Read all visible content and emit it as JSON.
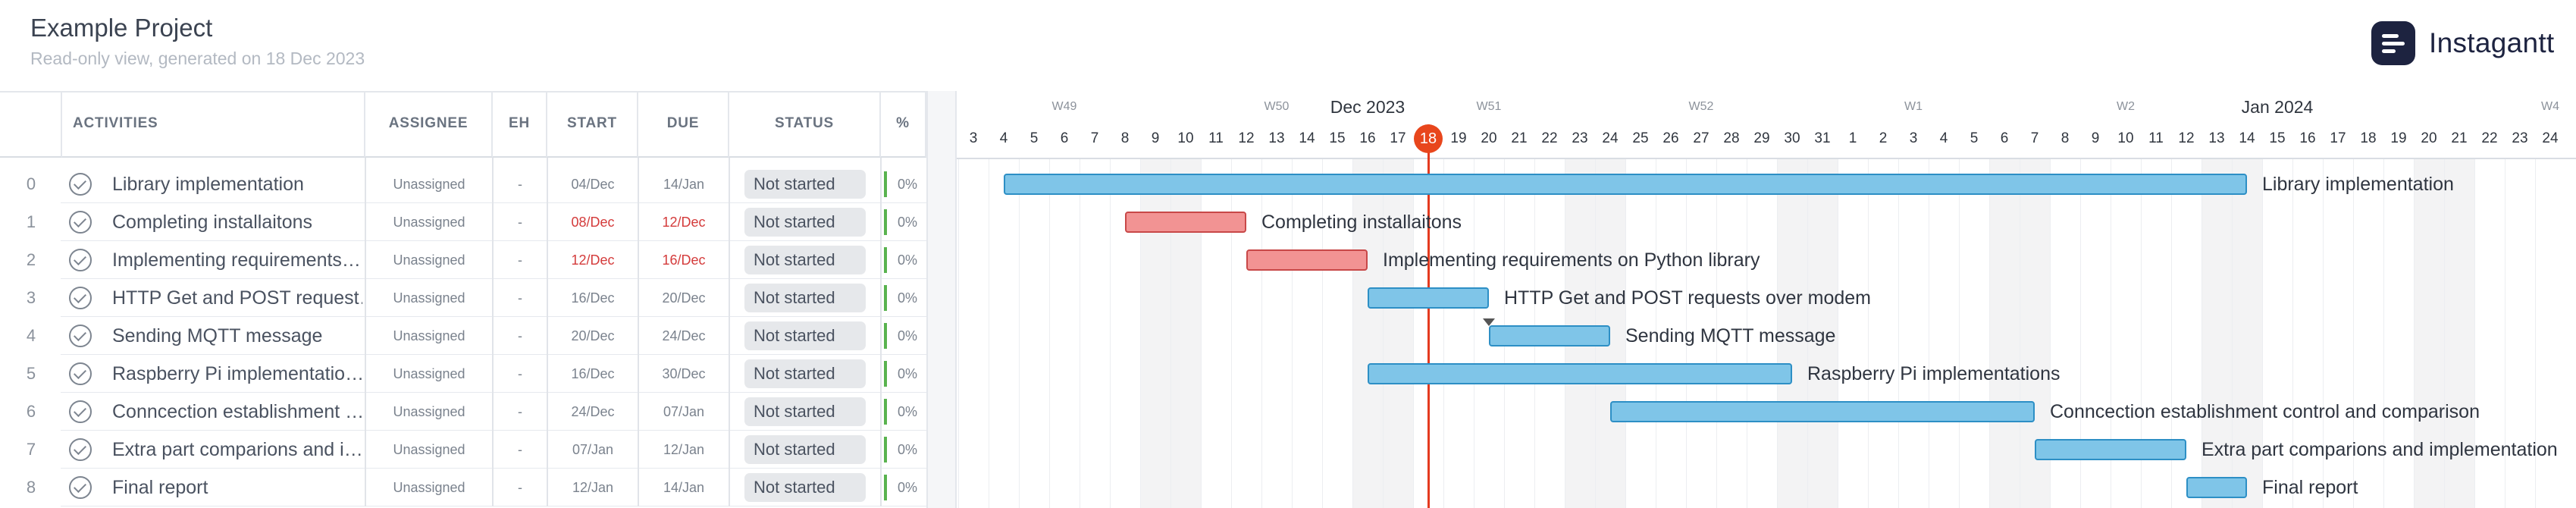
{
  "project": {
    "title": "Example Project",
    "subtitle": "Read-only view, generated on 18 Dec 2023",
    "brand": "Instagantt"
  },
  "columns": {
    "activities": "ACTIVITIES",
    "assignee": "ASSIGNEE",
    "eh": "EH",
    "start": "START",
    "due": "DUE",
    "status": "STATUS",
    "pct": "%"
  },
  "tasks": [
    {
      "no": "0",
      "name": "Library implementation",
      "assignee": "Unassigned",
      "eh": "-",
      "start": "04/Dec",
      "due": "14/Jan",
      "status": "Not started",
      "pct": "0%",
      "overdue": false,
      "bar_start": "2023-12-04",
      "bar_end": "2024-01-14",
      "color": "blue",
      "label": "Library implementation"
    },
    {
      "no": "1",
      "name": "Completing installaitons",
      "assignee": "Unassigned",
      "eh": "-",
      "start": "08/Dec",
      "due": "12/Dec",
      "status": "Not started",
      "pct": "0%",
      "overdue": true,
      "bar_start": "2023-12-08",
      "bar_end": "2023-12-12",
      "color": "red",
      "label": "Completing installaitons"
    },
    {
      "no": "2",
      "name": "Implementing requirements…",
      "assignee": "Unassigned",
      "eh": "-",
      "start": "12/Dec",
      "due": "16/Dec",
      "status": "Not started",
      "pct": "0%",
      "overdue": true,
      "bar_start": "2023-12-12",
      "bar_end": "2023-12-16",
      "color": "red",
      "label": "Implementing requirements on Python library"
    },
    {
      "no": "3",
      "name": "HTTP Get and POST request…",
      "assignee": "Unassigned",
      "eh": "-",
      "start": "16/Dec",
      "due": "20/Dec",
      "status": "Not started",
      "pct": "0%",
      "overdue": false,
      "bar_start": "2023-12-16",
      "bar_end": "2023-12-20",
      "color": "blue",
      "label": "HTTP Get and POST requests over modem"
    },
    {
      "no": "4",
      "name": "Sending MQTT message",
      "assignee": "Unassigned",
      "eh": "-",
      "start": "20/Dec",
      "due": "24/Dec",
      "status": "Not started",
      "pct": "0%",
      "overdue": false,
      "bar_start": "2023-12-20",
      "bar_end": "2023-12-24",
      "color": "blue",
      "label": "Sending MQTT message"
    },
    {
      "no": "5",
      "name": "Raspberry Pi implementatio…",
      "assignee": "Unassigned",
      "eh": "-",
      "start": "16/Dec",
      "due": "30/Dec",
      "status": "Not started",
      "pct": "0%",
      "overdue": false,
      "bar_start": "2023-12-16",
      "bar_end": "2023-12-30",
      "color": "blue",
      "label": "Raspberry Pi implementations"
    },
    {
      "no": "6",
      "name": "Conncection establishment …",
      "assignee": "Unassigned",
      "eh": "-",
      "start": "24/Dec",
      "due": "07/Jan",
      "status": "Not started",
      "pct": "0%",
      "overdue": false,
      "bar_start": "2023-12-24",
      "bar_end": "2024-01-07",
      "color": "blue",
      "label": "Conncection establishment control and comparison"
    },
    {
      "no": "7",
      "name": "Extra part comparions and i…",
      "assignee": "Unassigned",
      "eh": "-",
      "start": "07/Jan",
      "due": "12/Jan",
      "status": "Not started",
      "pct": "0%",
      "overdue": false,
      "bar_start": "2024-01-07",
      "bar_end": "2024-01-12",
      "color": "blue",
      "label": "Extra part comparions and implementation"
    },
    {
      "no": "8",
      "name": "Final report",
      "assignee": "Unassigned",
      "eh": "-",
      "start": "12/Jan",
      "due": "14/Jan",
      "status": "Not started",
      "pct": "0%",
      "overdue": false,
      "bar_start": "2024-01-12",
      "bar_end": "2024-01-14",
      "color": "blue",
      "label": "Final report"
    }
  ],
  "timeline": {
    "first_day": "2023-12-03",
    "days": [
      "3",
      "4",
      "5",
      "6",
      "7",
      "8",
      "9",
      "10",
      "11",
      "12",
      "13",
      "14",
      "15",
      "16",
      "17",
      "18",
      "19",
      "20",
      "21",
      "22",
      "23",
      "24",
      "25",
      "26",
      "27",
      "28",
      "29",
      "30",
      "31",
      "1",
      "2",
      "3",
      "4",
      "5",
      "6",
      "7",
      "8",
      "9",
      "10",
      "11",
      "12",
      "13",
      "14",
      "15",
      "16",
      "17",
      "18",
      "19",
      "20",
      "21",
      "22",
      "23",
      "24"
    ],
    "weeks": [
      {
        "label": "W49",
        "date": "2023-12-06"
      },
      {
        "label": "W50",
        "date": "2023-12-13"
      },
      {
        "label": "W51",
        "date": "2023-12-20"
      },
      {
        "label": "W52",
        "date": "2023-12-27"
      },
      {
        "label": "W1",
        "date": "2024-01-03"
      },
      {
        "label": "W2",
        "date": "2024-01-10"
      },
      {
        "label": "W4",
        "date": "2024-01-24"
      }
    ],
    "months": [
      {
        "label": "Dec 2023",
        "date": "2023-12-16"
      },
      {
        "label": "Jan 2024",
        "date": "2024-01-15"
      }
    ],
    "today": "2023-12-18",
    "today_label": "18",
    "today_color": "#e8461c",
    "bar_blue": "#7fc5e8",
    "bar_red": "#f29393"
  }
}
